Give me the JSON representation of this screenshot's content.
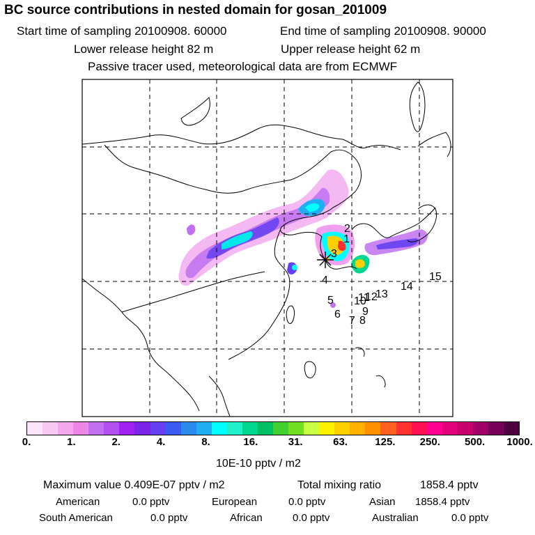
{
  "header": {
    "title": "BC  source contributions in nested domain for gosan_201009",
    "start_label": "Start time of sampling 20100908. 60000",
    "end_label": "End time of sampling 20100908. 90000",
    "lower_release": "Lower release height   82 m",
    "upper_release": "Upper release height   62 m",
    "tracer_note": "Passive tracer used, meteorological data are from ECMWF"
  },
  "map": {
    "receptor_marker": "*",
    "trajectory_labels": [
      "1",
      "2",
      "3",
      "4",
      "5",
      "6",
      "7",
      "8",
      "9",
      "10",
      "11",
      "12",
      "13",
      "14",
      "15"
    ]
  },
  "colorbar": {
    "colors": [
      "#fde4fb",
      "#f9c7f4",
      "#f4a6ee",
      "#ee86e8",
      "#c070f0",
      "#b44ff0",
      "#a020f0",
      "#7a24ea",
      "#6440f0",
      "#3a5cf0",
      "#2b8af0",
      "#20aef2",
      "#00ffff",
      "#20f0c8",
      "#00d890",
      "#00c060",
      "#40d030",
      "#70e020",
      "#c8ff40",
      "#fff000",
      "#ffd000",
      "#ffb000",
      "#ff9000",
      "#ff6020",
      "#ff3030",
      "#ff1050",
      "#ff0090",
      "#e40078",
      "#c8006e",
      "#a00068",
      "#780058",
      "#500040"
    ],
    "ticks": [
      "0.",
      "1.",
      "2.",
      "4.",
      "8.",
      "16.",
      "31.",
      "63.",
      "125.",
      "250.",
      "500.",
      "1000."
    ],
    "unit": "10E-10 pptv / m2"
  },
  "stats": {
    "max_value": "Maximum value  0.409E-07 pptv / m2",
    "total_mixing": "Total mixing ratio",
    "total_value": "1858.4 pptv",
    "american_label": "American",
    "american_value": "0.0 pptv",
    "european_label": "European",
    "european_value": "0.0 pptv",
    "asian_label": "Asian",
    "asian_value": "1858.4 pptv",
    "south_american_label": "South American",
    "south_american_value": "0.0 pptv",
    "african_label": "African",
    "african_value": "0.0 pptv",
    "australian_label": "Australian",
    "australian_value": "0.0 pptv"
  }
}
